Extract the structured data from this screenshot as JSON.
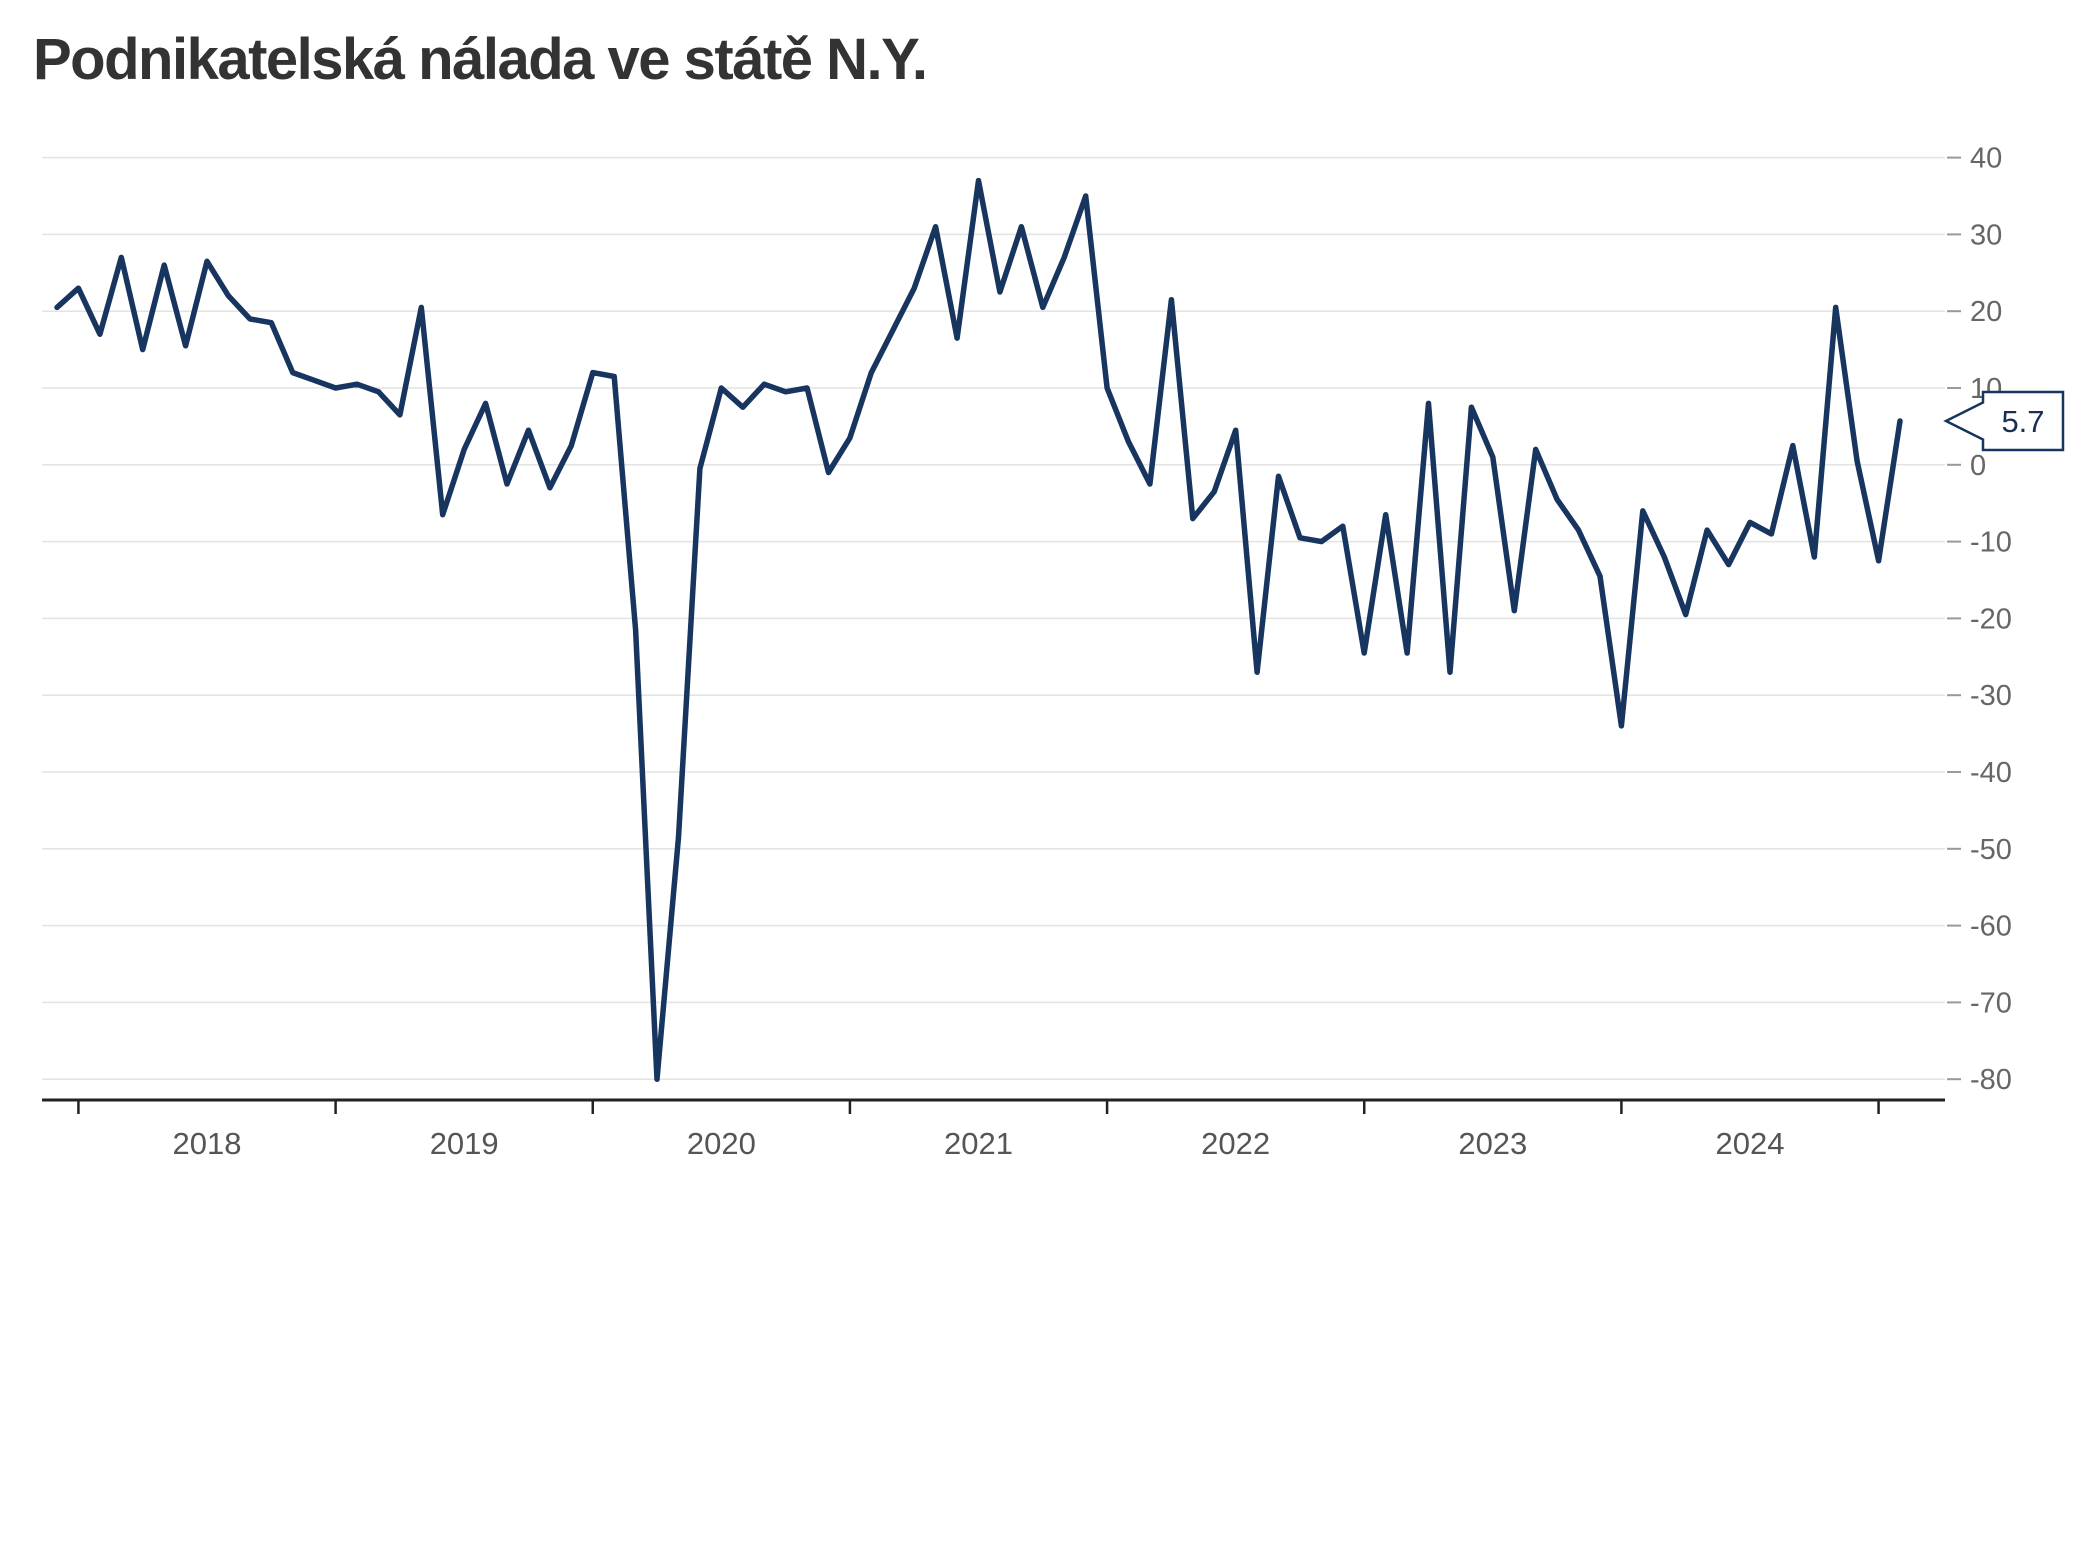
{
  "title": "Podnikatelská nálada ve státě N.Y.",
  "callout": {
    "value": "5.7"
  },
  "colors": {
    "line": "#17355e",
    "grid": "#e3e3e3",
    "axis": "#222222",
    "year_text": "#555555",
    "ytick_text": "#666666",
    "title_text": "#333333",
    "callout_border": "#17355e",
    "callout_text": "#1a2e52",
    "background": "#ffffff"
  },
  "chart_data": {
    "type": "line",
    "title": "Podnikatelská nálada ve státě N.Y.",
    "ylabel": "",
    "xlabel": "",
    "grid": true,
    "legend_position": "none",
    "ylim": [
      -80,
      40
    ],
    "y_ticks": [
      40,
      30,
      20,
      10,
      0,
      -10,
      -20,
      -30,
      -40,
      -50,
      -60,
      -70,
      -80
    ],
    "x_tick_labels": [
      "2018",
      "2019",
      "2020",
      "2021",
      "2022",
      "2023",
      "2024"
    ],
    "line_color": "#17355e",
    "last_value_label": "5.7",
    "months": [
      "2017-12",
      "2018-01",
      "2018-02",
      "2018-03",
      "2018-04",
      "2018-05",
      "2018-06",
      "2018-07",
      "2018-08",
      "2018-09",
      "2018-10",
      "2018-11",
      "2018-12",
      "2019-01",
      "2019-02",
      "2019-03",
      "2019-04",
      "2019-05",
      "2019-06",
      "2019-07",
      "2019-08",
      "2019-09",
      "2019-10",
      "2019-11",
      "2019-12",
      "2020-01",
      "2020-02",
      "2020-03",
      "2020-04",
      "2020-05",
      "2020-06",
      "2020-07",
      "2020-08",
      "2020-09",
      "2020-10",
      "2020-11",
      "2020-12",
      "2021-01",
      "2021-02",
      "2021-03",
      "2021-04",
      "2021-05",
      "2021-06",
      "2021-07",
      "2021-08",
      "2021-09",
      "2021-10",
      "2021-11",
      "2021-12",
      "2022-01",
      "2022-02",
      "2022-03",
      "2022-04",
      "2022-05",
      "2022-06",
      "2022-07",
      "2022-08",
      "2022-09",
      "2022-10",
      "2022-11",
      "2022-12",
      "2023-01",
      "2023-02",
      "2023-03",
      "2023-04",
      "2023-05",
      "2023-06",
      "2023-07",
      "2023-08",
      "2023-09",
      "2023-10",
      "2023-11",
      "2023-12",
      "2024-01",
      "2024-02",
      "2024-03",
      "2024-04",
      "2024-05",
      "2024-06",
      "2024-07",
      "2024-08",
      "2024-09",
      "2024-10",
      "2024-11",
      "2024-12",
      "2025-01",
      "2025-02"
    ],
    "values": [
      20.5,
      23,
      17,
      27,
      15,
      26,
      15.5,
      26.5,
      22,
      19,
      18.5,
      12,
      11,
      10,
      10.5,
      9.5,
      6.5,
      20.5,
      -6.5,
      2,
      8,
      -2.5,
      4.5,
      -3,
      2.5,
      12,
      11.5,
      -21.5,
      -80,
      -48.5,
      -0.5,
      10,
      7.5,
      10.5,
      9.5,
      10,
      -1,
      3.5,
      12,
      17.5,
      23,
      31,
      16.5,
      37,
      22.5,
      31,
      20.5,
      27,
      35,
      10,
      3,
      -2.5,
      21.5,
      -7,
      -3.5,
      4.5,
      -27,
      -1.5,
      -9.5,
      -10,
      -8,
      -24.5,
      -6.5,
      -24.5,
      8,
      -27,
      7.5,
      1,
      -19,
      2,
      -4.5,
      -8.5,
      -14.5,
      -34,
      -6,
      -12,
      -19.5,
      -8.5,
      -13,
      -7.5,
      -9,
      2.5,
      -12,
      20.5,
      0.5,
      -12.5,
      5.7
    ],
    "annotations": [
      {
        "text": "5.7",
        "x": "2025-02",
        "y": 5.7
      }
    ]
  }
}
